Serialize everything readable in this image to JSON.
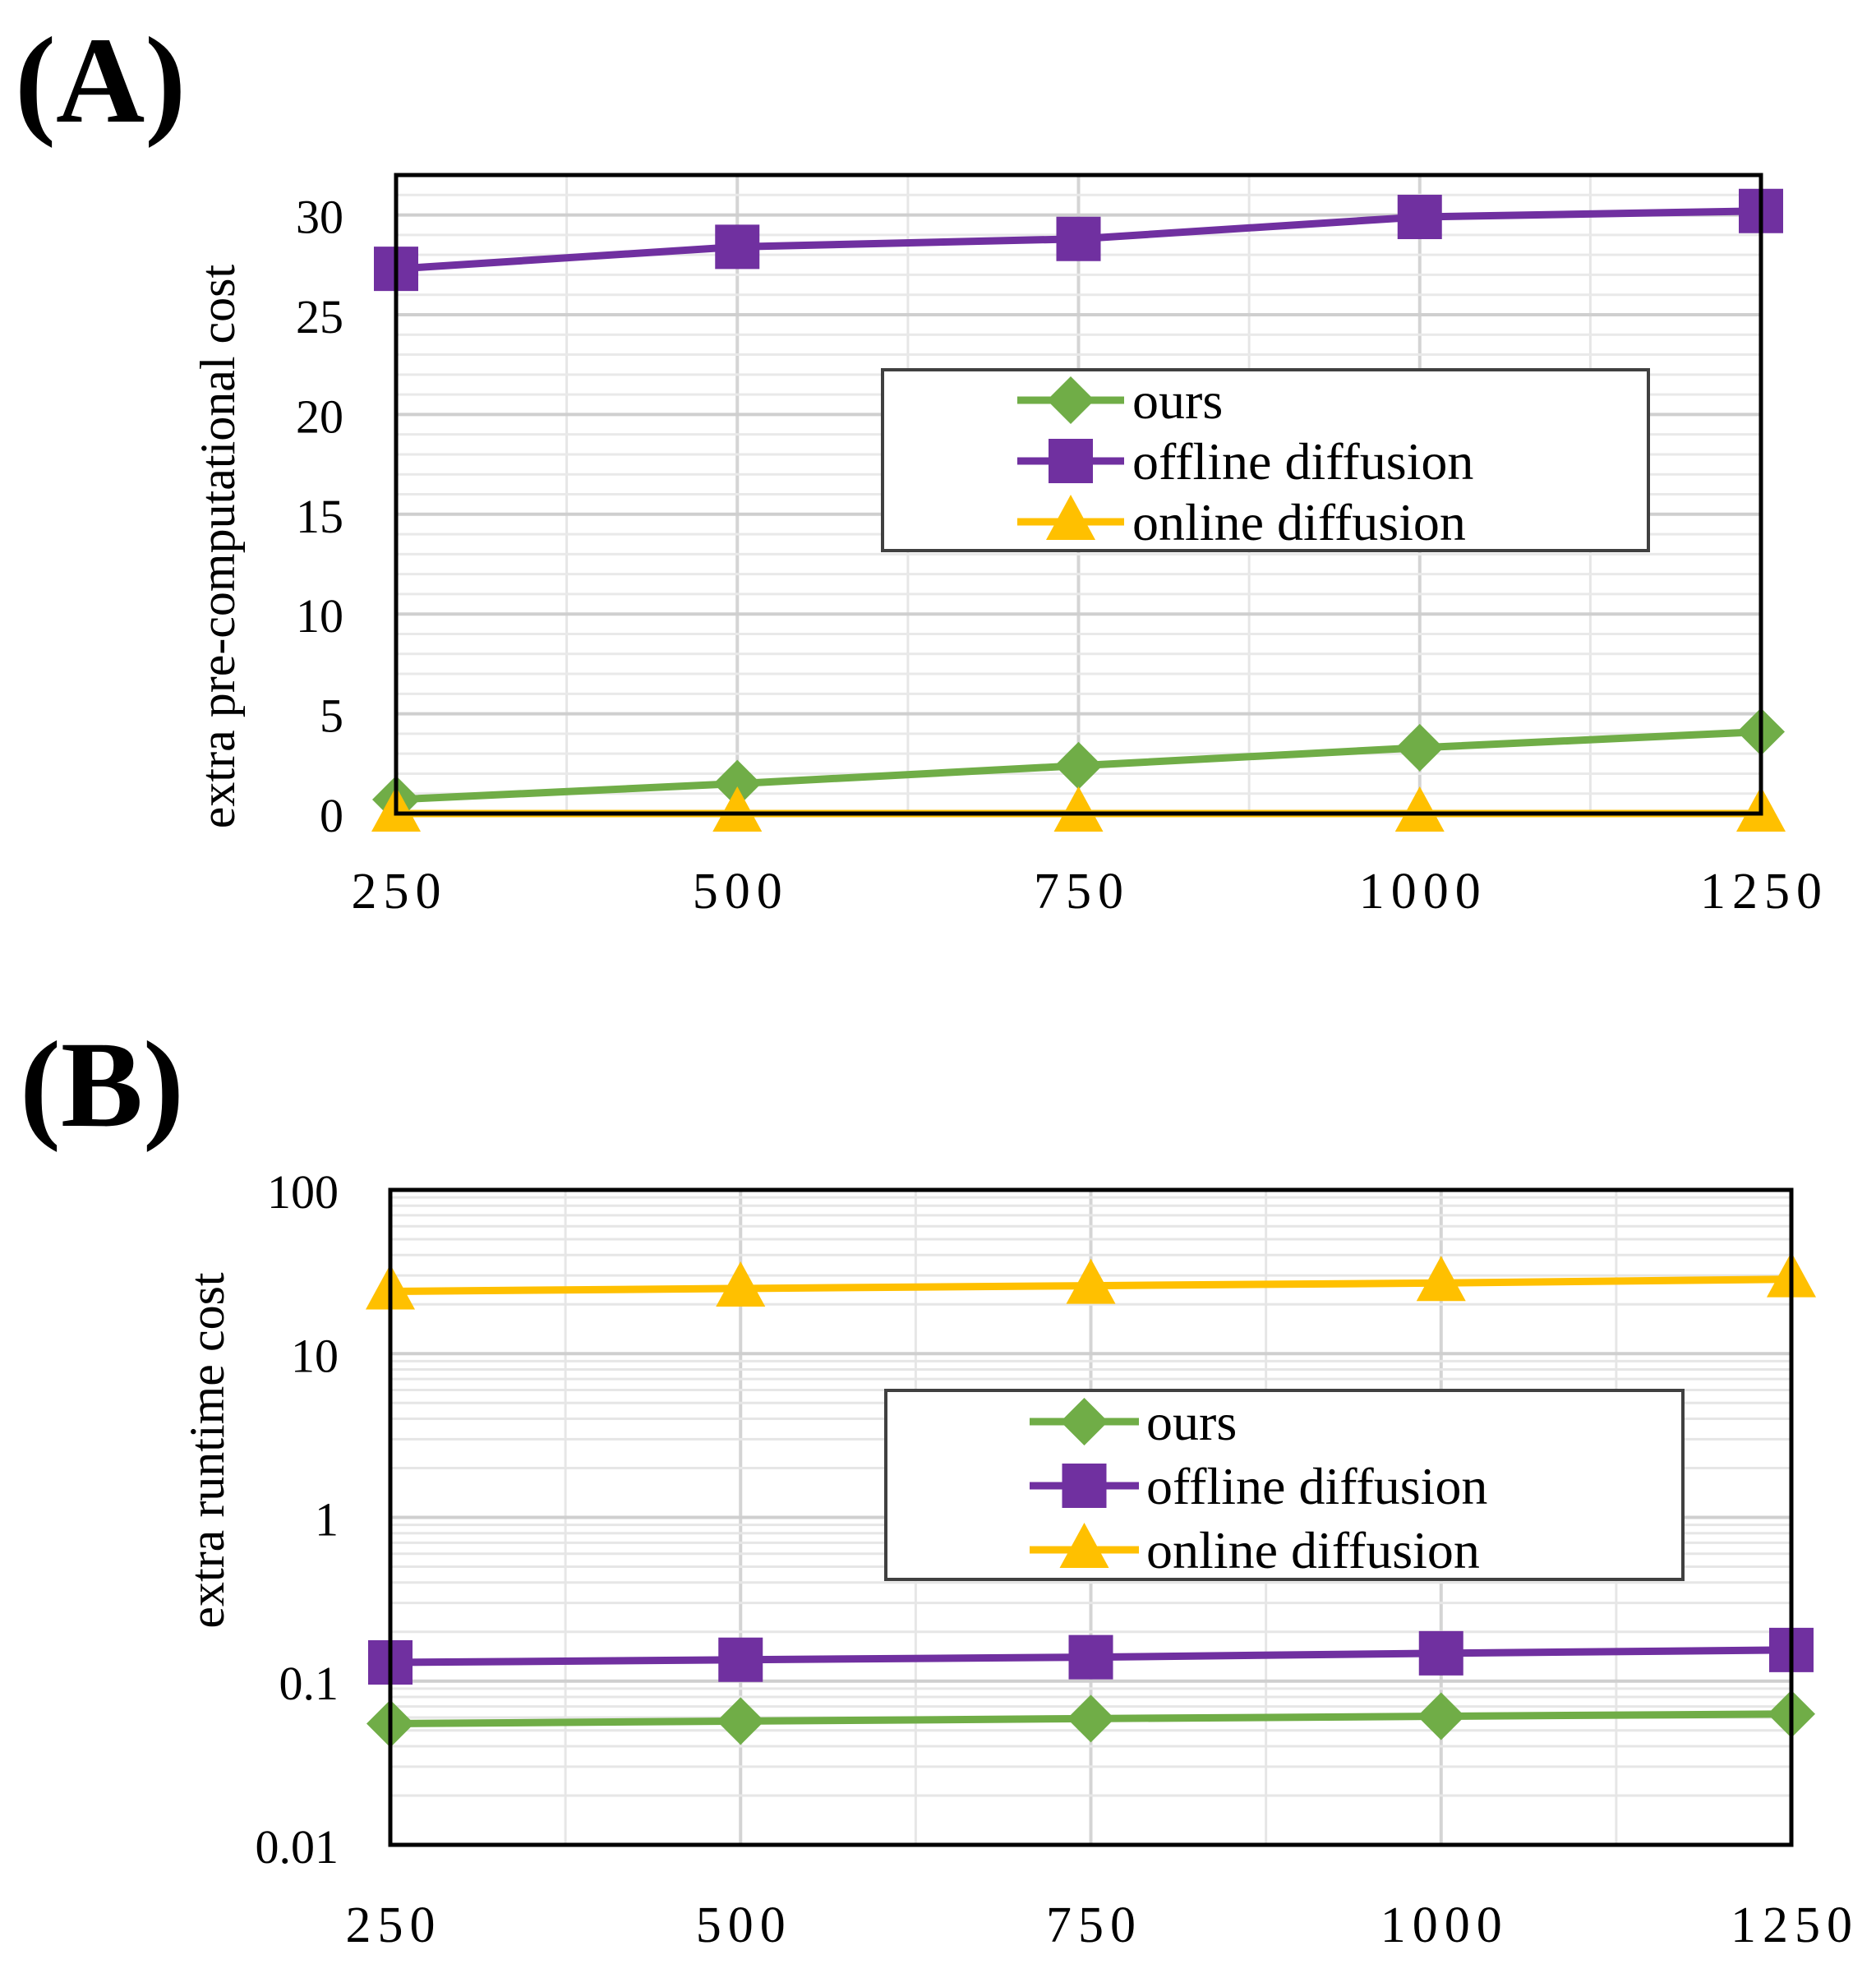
{
  "chart_data": [
    {
      "type": "line",
      "panel_label": "(A)",
      "title": "",
      "xlabel": "",
      "ylabel": "extra pre-computational cost",
      "x": [
        250,
        500,
        750,
        1000,
        1250
      ],
      "x_tick_labels": [
        "250",
        "500",
        "750",
        "1000",
        "1250"
      ],
      "xlim": [
        250,
        1250
      ],
      "ylim": [
        0,
        32
      ],
      "yscale": "linear",
      "y_ticks": [
        0,
        5,
        10,
        15,
        20,
        25,
        30
      ],
      "y_tick_labels": [
        "0",
        "5",
        "10",
        "15",
        "20",
        "25",
        "30"
      ],
      "grid": true,
      "legend_position": "center-right",
      "series": [
        {
          "name": "ours",
          "color": "#70AD47",
          "marker": "diamond",
          "values": [
            0.7,
            1.5,
            2.4,
            3.3,
            4.1
          ]
        },
        {
          "name": "offline diffusion",
          "color": "#7030A0",
          "marker": "square",
          "values": [
            27.3,
            28.4,
            28.8,
            29.9,
            30.2
          ]
        },
        {
          "name": "online diffusion",
          "color": "#FFC000",
          "marker": "triangle",
          "values": [
            0,
            0,
            0,
            0,
            0
          ]
        }
      ]
    },
    {
      "type": "line",
      "panel_label": "(B)",
      "title": "",
      "xlabel": "",
      "ylabel": "extra runtime cost",
      "x": [
        250,
        500,
        750,
        1000,
        1250
      ],
      "x_tick_labels": [
        "250",
        "500",
        "750",
        "1000",
        "1250"
      ],
      "xlim": [
        250,
        1250
      ],
      "ylim": [
        0.01,
        100
      ],
      "yscale": "log",
      "y_ticks": [
        0.01,
        0.1,
        1,
        10,
        100
      ],
      "y_tick_labels": [
        "0.01",
        "0.1",
        "1",
        "10",
        "100"
      ],
      "grid": true,
      "legend_position": "center-right",
      "series": [
        {
          "name": "ours",
          "color": "#70AD47",
          "marker": "diamond",
          "values": [
            0.055,
            0.057,
            0.059,
            0.061,
            0.063
          ]
        },
        {
          "name": "offline diffusion",
          "color": "#7030A0",
          "marker": "square",
          "values": [
            0.13,
            0.135,
            0.14,
            0.148,
            0.155
          ]
        },
        {
          "name": "online diffusion",
          "color": "#FFC000",
          "marker": "triangle",
          "values": [
            24,
            25,
            26,
            27,
            28.5
          ]
        }
      ]
    }
  ]
}
